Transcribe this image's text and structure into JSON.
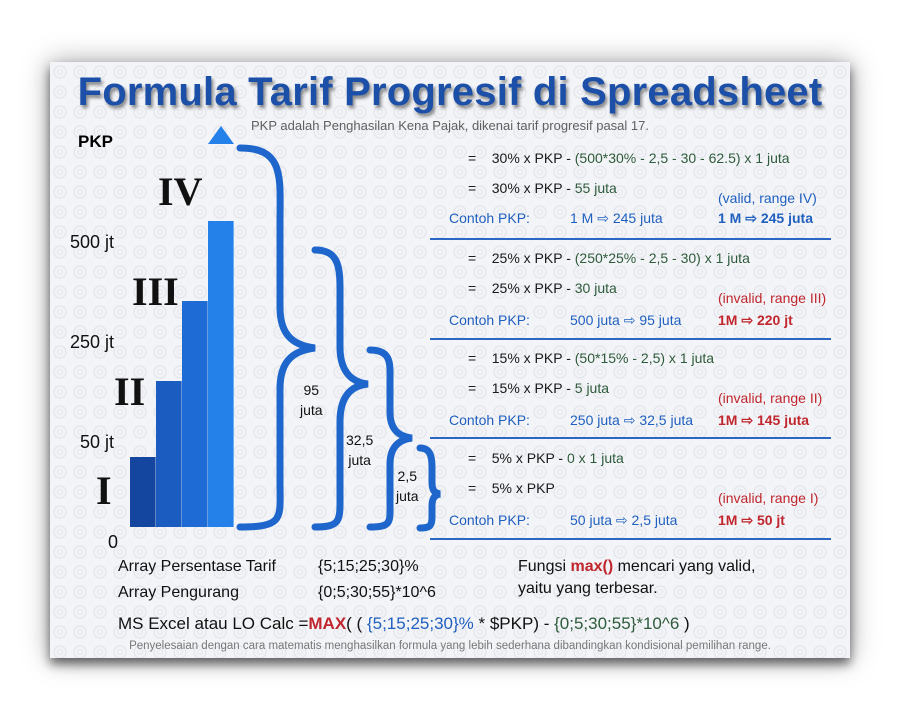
{
  "title": "Formula Tarif Progresif di Spreadsheet",
  "subtitle": "PKP adalah Penghasilan Kena Pajak, dikenai tarif progresif pasal 17.",
  "axis": {
    "label": "PKP",
    "ticks": [
      "500 jt",
      "250 jt",
      "50 jt",
      "0"
    ]
  },
  "brackets": {
    "roman": [
      "I",
      "II",
      "III",
      "IV"
    ],
    "fractions": [
      0.178,
      0.373,
      0.577,
      0.781
    ],
    "colors": [
      "#1446a0",
      "#1a5cc0",
      "#1e6bd6",
      "#2581ea"
    ]
  },
  "braces": [
    {
      "line1": "95",
      "line2": "juta"
    },
    {
      "line1": "32,5",
      "line2": "juta"
    },
    {
      "line1": "2,5",
      "line2": "juta"
    }
  ],
  "sections": [
    {
      "eq1_prefix": "30% x PKP - ",
      "eq1_formula": "(500*30% - 2,5 - 30 - 62.5) x 1 juta",
      "eq2_prefix": "30% x PKP - ",
      "eq2_value": "55 juta",
      "example_label": "Contoh PKP:",
      "example": "1 M ⇨ 245 juta",
      "status": "(valid, range IV)",
      "result": "1 M ⇨ 245 juta"
    },
    {
      "eq1_prefix": "25% x PKP - ",
      "eq1_formula": "(250*25% - 2,5 - 30) x 1 juta",
      "eq2_prefix": "25% x PKP - ",
      "eq2_value": "30 juta",
      "example_label": "Contoh PKP:",
      "example": "500 juta ⇨ 95 juta",
      "status": "(invalid, range III)",
      "result": "1M ⇨ 220 jt"
    },
    {
      "eq1_prefix": "15% x PKP - ",
      "eq1_formula": "(50*15% - 2,5) x 1 juta",
      "eq2_prefix": "15% x PKP - ",
      "eq2_value": "5 juta",
      "example_label": "Contoh PKP:",
      "example": "250 juta ⇨ 32,5 juta",
      "status": "(invalid, range II)",
      "result": "1M ⇨ 145 juta"
    },
    {
      "eq1_prefix": "5% x PKP - ",
      "eq1_formula": "0 x 1 juta",
      "eq2_prefix": "5% x PKP",
      "eq2_value": "",
      "example_label": "Contoh PKP:",
      "example": "50 juta ⇨ 2,5 juta",
      "status": "(invalid, range I)",
      "result": "1M ⇨ 50 jt"
    }
  ],
  "eq_sign": "=",
  "arrays": {
    "persentase_label": "Array Persentase  Tarif",
    "persentase_value": "{5;15;25;30}%",
    "pengurang_label": "Array Pengurang",
    "pengurang_value": "{0;5;30;55}*10^6"
  },
  "max_note": {
    "prefix": "Fungsi ",
    "func": "max()",
    "suffix": " mencari yang valid,",
    "line2": "yaitu yang terbesar."
  },
  "formula": {
    "prefix": "MS Excel atau LO Calc =",
    "func": "MAX",
    "open": "( ( ",
    "arr1": "{5;15;25;30}%",
    "mid": " * $PKP) - ",
    "arr2": "{0;5;30;55}*10^6",
    "close": " )"
  },
  "footer": "Penyelesaian dengan cara matematis menghasilkan formula yang lebih sederhana dibandingkan kondisional pemilihan range.",
  "colors": {
    "title": "#1b4fa8",
    "accent_blue": "#1f5fbf",
    "formula_green": "#2e5b3b",
    "invalid_red": "#c0262d",
    "divider": "#2b66c4"
  }
}
